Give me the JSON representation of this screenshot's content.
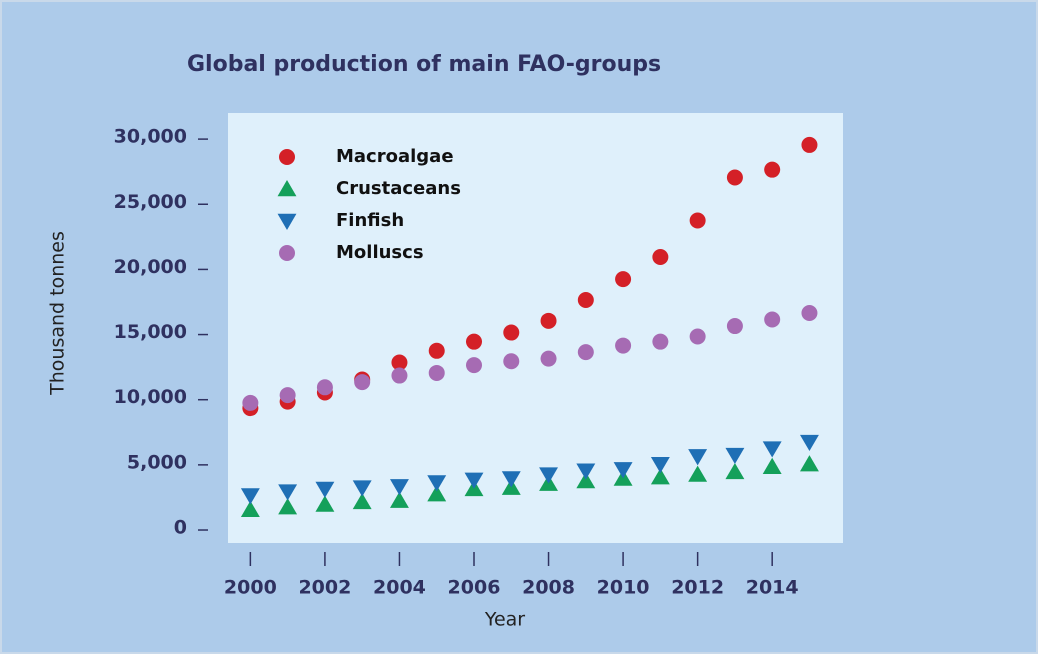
{
  "chart_data": {
    "type": "scatter",
    "title": "Global production of main FAO-groups",
    "xlabel": "Year",
    "ylabel": "Thousand tonnes",
    "x": [
      2000,
      2001,
      2002,
      2003,
      2004,
      2005,
      2006,
      2007,
      2008,
      2009,
      2010,
      2011,
      2012,
      2013,
      2014,
      2015
    ],
    "series": [
      {
        "name": "Macroalgae",
        "color": "#d42027",
        "marker": "circle",
        "values": [
          9200,
          9700,
          10400,
          11400,
          12700,
          13600,
          14300,
          15000,
          15900,
          17500,
          19100,
          20800,
          23600,
          26900,
          27500,
          29400
        ]
      },
      {
        "name": "Crustaceans",
        "color": "#14a05a",
        "marker": "triangle-up",
        "values": [
          1400,
          1600,
          1800,
          2000,
          2100,
          2600,
          3000,
          3100,
          3400,
          3600,
          3800,
          3900,
          4100,
          4300,
          4700,
          4900
        ]
      },
      {
        "name": "Finfish",
        "color": "#1f6fb5",
        "marker": "triangle-down",
        "values": [
          2500,
          2800,
          3000,
          3100,
          3200,
          3500,
          3700,
          3800,
          4100,
          4400,
          4500,
          4900,
          5500,
          5600,
          6100,
          6600
        ]
      },
      {
        "name": "Molluscs",
        "color": "#a66bb3",
        "marker": "circle",
        "values": [
          9600,
          10200,
          10800,
          11200,
          11700,
          11900,
          12500,
          12800,
          13000,
          13500,
          14000,
          14300,
          14700,
          15500,
          16000,
          16500
        ]
      }
    ],
    "xlim": [
      1999.4,
      2015.9
    ],
    "xticks": [
      2000,
      2002,
      2004,
      2006,
      2008,
      2010,
      2012,
      2014
    ],
    "ylim": [
      -1150,
      31850
    ],
    "yticks": [
      0,
      {
        "value": 5000,
        "label": "5,000"
      },
      {
        "value": 10000,
        "label": "10,000"
      },
      {
        "value": 15000,
        "label": "15,000"
      },
      {
        "value": 20000,
        "label": "20,000"
      },
      {
        "value": 25000,
        "label": "25,000"
      },
      {
        "value": 30000,
        "label": "30,000"
      }
    ],
    "legend": "upper left"
  }
}
